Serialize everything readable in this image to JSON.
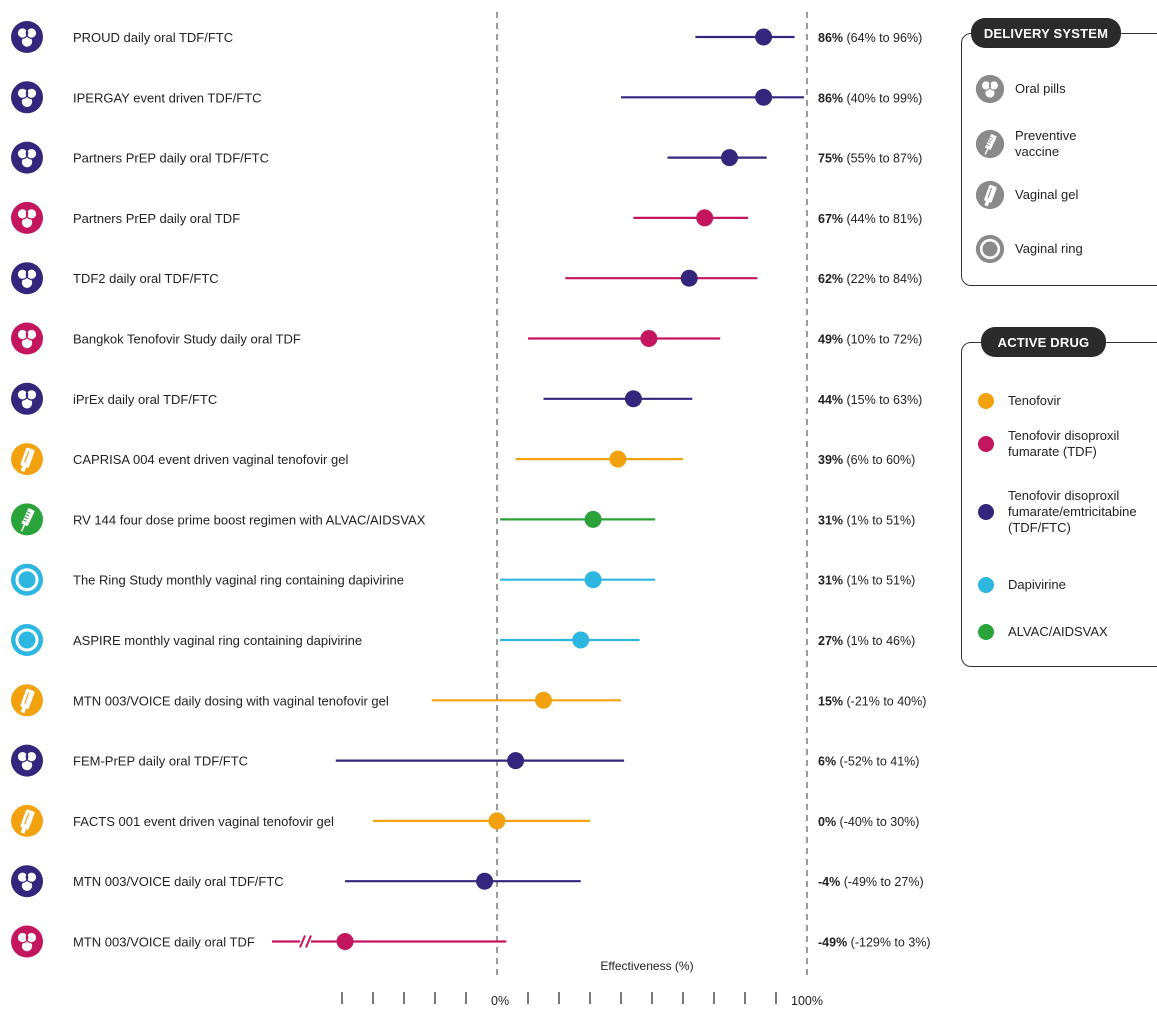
{
  "chart_data": {
    "type": "forest",
    "xlabel": "Effectiveness (%)",
    "x_tick_labels": {
      "zero": "0%",
      "hundred": "100%"
    },
    "xlim": [
      -129,
      100
    ],
    "studies": [
      {
        "label": "PROUD daily oral TDF/FTC",
        "system": "oral-pills",
        "drug": "TDF/FTC",
        "estimate": 86,
        "low": 64,
        "high": 96,
        "pct_text": "86%",
        "ci_text": " (64% to 96%)"
      },
      {
        "label": "IPERGAY event driven TDF/FTC",
        "system": "oral-pills",
        "drug": "TDF/FTC",
        "estimate": 86,
        "low": 40,
        "high": 99,
        "pct_text": "86%",
        "ci_text": " (40% to 99%)"
      },
      {
        "label": "Partners PrEP daily oral TDF/FTC",
        "system": "oral-pills",
        "drug": "TDF/FTC",
        "estimate": 75,
        "low": 55,
        "high": 87,
        "pct_text": "75%",
        "ci_text": " (55% to 87%)"
      },
      {
        "label": "Partners PrEP daily oral TDF",
        "system": "oral-pills",
        "drug": "TDF",
        "estimate": 67,
        "low": 44,
        "high": 81,
        "pct_text": "67%",
        "ci_text": " (44% to 81%)"
      },
      {
        "label": "TDF2 daily oral TDF/FTC",
        "system": "oral-pills",
        "drug": "TDF/FTC",
        "estimate": 62,
        "low": 22,
        "high": 84,
        "line_drug": "TDF",
        "pct_text": "62%",
        "ci_text": " (22% to 84%)"
      },
      {
        "label": "Bangkok Tenofovir Study daily oral TDF",
        "system": "oral-pills",
        "drug": "TDF",
        "estimate": 49,
        "low": 10,
        "high": 72,
        "pct_text": "49%",
        "ci_text": " (10% to 72%)"
      },
      {
        "label": "iPrEx daily oral TDF/FTC",
        "system": "oral-pills",
        "drug": "TDF/FTC",
        "estimate": 44,
        "low": 15,
        "high": 63,
        "pct_text": "44%",
        "ci_text": " (15% to 63%)"
      },
      {
        "label": "CAPRISA 004 event driven vaginal tenofovir gel",
        "system": "vaginal-gel",
        "drug": "Tenofovir",
        "estimate": 39,
        "low": 6,
        "high": 60,
        "pct_text": "39%",
        "ci_text": " (6% to 60%)"
      },
      {
        "label": "RV 144 four dose prime boost regimen with ALVAC/AIDSVAX",
        "system": "preventive-vaccine",
        "drug": "ALVAC/AIDSVAX",
        "estimate": 31,
        "low": 1,
        "high": 51,
        "pct_text": "31%",
        "ci_text": " (1% to 51%)"
      },
      {
        "label": "The Ring Study monthly vaginal ring containing dapivirine",
        "system": "vaginal-ring",
        "drug": "Dapivirine",
        "estimate": 31,
        "low": 1,
        "high": 51,
        "pct_text": "31%",
        "ci_text": " (1% to 51%)"
      },
      {
        "label": "ASPIRE monthly vaginal ring containing dapivirine",
        "system": "vaginal-ring",
        "drug": "Dapivirine",
        "estimate": 27,
        "low": 1,
        "high": 46,
        "pct_text": "27%",
        "ci_text": " (1% to 46%)"
      },
      {
        "label": "MTN 003/VOICE daily dosing with vaginal tenofovir gel",
        "system": "vaginal-gel",
        "drug": "Tenofovir",
        "estimate": 15,
        "low": -21,
        "high": 40,
        "pct_text": "15%",
        "ci_text": " (-21% to 40%)"
      },
      {
        "label": "FEM-PrEP daily oral TDF/FTC",
        "system": "oral-pills",
        "drug": "TDF/FTC",
        "estimate": 6,
        "low": -52,
        "high": 41,
        "pct_text": "6%",
        "ci_text": " (-52% to 41%)"
      },
      {
        "label": "FACTS 001 event driven vaginal tenofovir gel",
        "system": "vaginal-gel",
        "drug": "Tenofovir",
        "estimate": 0,
        "low": -40,
        "high": 30,
        "pct_text": "0%",
        "ci_text": " (-40% to 30%)"
      },
      {
        "label": "MTN 003/VOICE daily oral TDF/FTC",
        "system": "oral-pills",
        "drug": "TDF/FTC",
        "estimate": -4,
        "low": -49,
        "high": 27,
        "pct_text": "-4%",
        "ci_text": " (-49% to 27%)"
      },
      {
        "label": "MTN 003/VOICE daily oral TDF",
        "system": "oral-pills",
        "drug": "TDF",
        "estimate": -49,
        "low": -129,
        "high": 3,
        "axis_break": true,
        "pct_text": "-49%",
        "ci_text": " (-129% to 3%)"
      }
    ]
  },
  "colors": {
    "Tenofovir": "#f2a20f",
    "TDF": "#c4165f",
    "TDF/FTC": "#34267c",
    "Dapivirine": "#2cb6e0",
    "ALVAC/AIDSVAX": "#2aa33b",
    "icon_gray": "#8a8a8a",
    "dash": "#7a7a7a",
    "text": "#222222"
  },
  "legend": {
    "delivery": {
      "title": "DELIVERY SYSTEM",
      "items": [
        {
          "label": "Oral pills",
          "icon": "oral-pills"
        },
        {
          "label": "Preventive\nvaccine",
          "icon": "preventive-vaccine"
        },
        {
          "label": "Vaginal gel",
          "icon": "vaginal-gel"
        },
        {
          "label": "Vaginal ring",
          "icon": "vaginal-ring"
        }
      ]
    },
    "drug": {
      "title": "ACTIVE DRUG",
      "items": [
        {
          "label": "Tenofovir",
          "key": "Tenofovir"
        },
        {
          "label": "Tenofovir disoproxil\nfumarate (TDF)",
          "key": "TDF"
        },
        {
          "label": "Tenofovir disoproxil\nfumarate/emtricitabine\n(TDF/FTC)",
          "key": "TDF/FTC"
        },
        {
          "label": "Dapivirine",
          "key": "Dapivirine"
        },
        {
          "label": "ALVAC/AIDSVAX",
          "key": "ALVAC/AIDSVAX"
        }
      ]
    }
  }
}
